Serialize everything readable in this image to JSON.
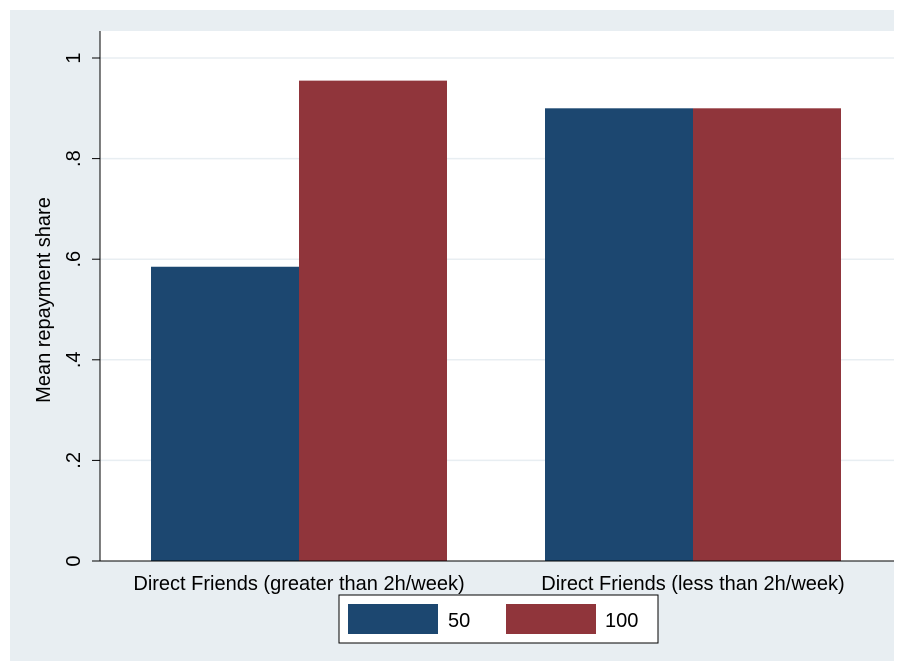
{
  "chart_data": {
    "type": "bar",
    "categories": [
      "Direct Friends (greater than 2h/week)",
      "Direct Friends (less than 2h/week)"
    ],
    "series": [
      {
        "name": "50",
        "values": [
          0.585,
          0.9
        ],
        "color": "#1c4770"
      },
      {
        "name": "100",
        "values": [
          0.955,
          0.9
        ],
        "color": "#90353b"
      }
    ],
    "ylabel": "Mean repayment share",
    "xlabel": "",
    "ylim": [
      0,
      1
    ],
    "yticks": [
      0,
      0.2,
      0.4,
      0.6,
      0.8,
      1
    ],
    "ytick_labels": [
      "0",
      ".2",
      ".4",
      ".6",
      ".8",
      "1"
    ],
    "grid": true,
    "legend_position": "bottom"
  }
}
